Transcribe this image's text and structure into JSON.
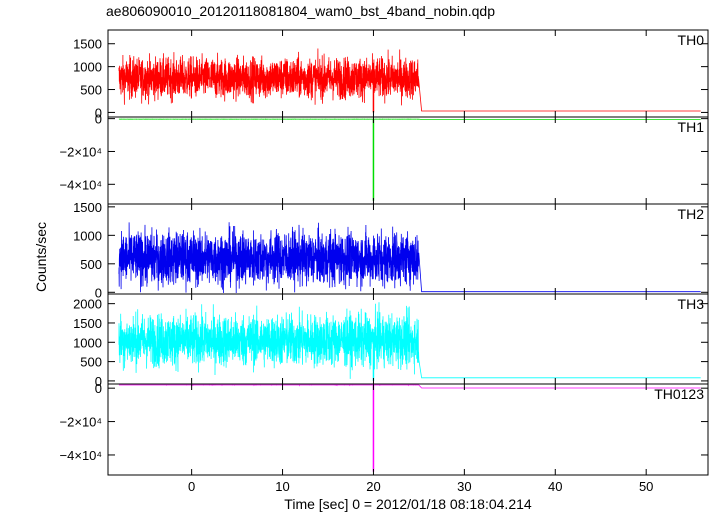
{
  "figure": {
    "title": "ae806090010_20120118081804_wam0_bst_4band_nobin.qdp",
    "xlabel": "Time [sec] 0 = 2012/01/18 08:18:04.214",
    "ylabel": "Counts/sec"
  },
  "chart_data": {
    "type": "line",
    "title": "ae806090010_20120118081804_wam0_bst_4band_nobin.qdp",
    "xlabel": "Time [sec] 0 = 2012/01/18 08:18:04.214",
    "ylabel": "Counts/sec",
    "xlim": [
      -9.2,
      56.8
    ],
    "x_ticks": [
      0,
      10,
      20,
      30,
      40,
      50
    ],
    "x_start": -8,
    "x_end": 56,
    "grid": false,
    "panels": [
      {
        "label": "TH0",
        "color": "#ff0000",
        "ylim": [
          -100,
          1800
        ],
        "y_ticks": [
          0,
          500,
          1000,
          1500
        ],
        "y_tick_labels": [
          "0",
          "500",
          "1000",
          "1500"
        ],
        "baseline": 750,
        "noise_sd": 220,
        "x_cutoff": 25,
        "after_level": 30,
        "spike": {
          "x": 20,
          "value": 0
        }
      },
      {
        "label": "TH1",
        "color": "#00dd00",
        "ylim": [
          -52000,
          1000
        ],
        "y_ticks": [
          0,
          -20000,
          -40000
        ],
        "y_tick_labels": [
          "0",
          "−2×10⁴",
          "−4×10⁴"
        ],
        "baseline": -300,
        "noise_sd": 20,
        "x_cutoff": 25,
        "after_level": -500,
        "spike": {
          "x": 20,
          "value": -50000
        }
      },
      {
        "label": "TH2",
        "color": "#0000ee",
        "ylim": [
          -30,
          1550
        ],
        "y_ticks": [
          0,
          500,
          1000,
          1500
        ],
        "y_tick_labels": [
          "0",
          "500",
          "1000",
          "1500"
        ],
        "baseline": 600,
        "noise_sd": 230,
        "x_cutoff": 25,
        "after_level": 10,
        "spike": null
      },
      {
        "label": "TH3",
        "color": "#00ffff",
        "ylim": [
          -80,
          2250
        ],
        "y_ticks": [
          0,
          500,
          1000,
          1500,
          2000
        ],
        "y_tick_labels": [
          "0",
          "500",
          "1000",
          "1500",
          "2000"
        ],
        "baseline": 1050,
        "noise_sd": 330,
        "x_cutoff": 25,
        "after_level": 80,
        "spike": {
          "x": 20,
          "value": 0
        }
      },
      {
        "label": "TH0123",
        "color": "#ff00ff",
        "ylim": [
          -52000,
          2500
        ],
        "y_ticks": [
          0,
          -20000,
          -40000
        ],
        "y_tick_labels": [
          "0",
          "−2×10⁴",
          "−4×10⁴"
        ],
        "baseline": 2400,
        "noise_sd": 250,
        "x_cutoff": 25,
        "after_level": 100,
        "spike": {
          "x": 20,
          "value": -50000
        }
      }
    ]
  }
}
